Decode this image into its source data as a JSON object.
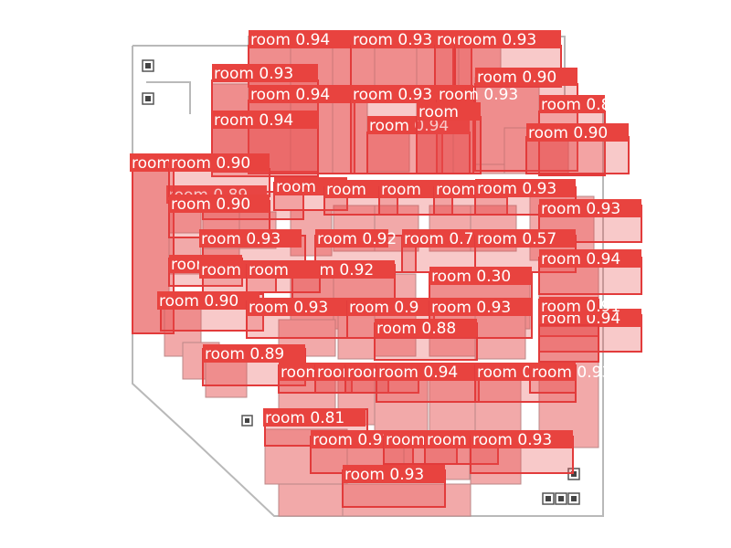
{
  "class_label": "room",
  "colors": {
    "box": "#e23b3b",
    "tag": "#e8433f",
    "fill": "#f2a9a9",
    "outline": "#b9b9b9"
  },
  "icons": [
    "restroom-icon",
    "restroom-icon",
    "restroom-icon",
    "restroom-icon",
    "facility-icons"
  ],
  "detections": [
    {
      "score": "0.94"
    },
    {
      "score": "0.93"
    },
    {
      "score": "0.9"
    },
    {
      "score": "0.93"
    },
    {
      "score": "0.93"
    },
    {
      "score": "0.90"
    },
    {
      "score": "0.94"
    },
    {
      "score": "0.93"
    },
    {
      "score": "0.93"
    },
    {
      "score": "0.89"
    },
    {
      "score": "0.94"
    },
    {
      "score": "0.94"
    },
    {
      "score": ""
    },
    {
      "score": "0.90"
    },
    {
      "score": "0.89"
    },
    {
      "score": "0.90"
    },
    {
      "score": "0.90"
    },
    {
      "score": ""
    },
    {
      "score": ""
    },
    {
      "score": ""
    },
    {
      "score": ""
    },
    {
      "score": "0.93"
    },
    {
      "score": "0.93"
    },
    {
      "score": "0.90"
    },
    {
      "score": "0.93"
    },
    {
      "score": "0.92"
    },
    {
      "score": "0.74"
    },
    {
      "score": "0.57"
    },
    {
      "score": "0.94"
    },
    {
      "score": ""
    },
    {
      "score": ""
    },
    {
      "score": "0.92"
    },
    {
      "score": ""
    },
    {
      "score": "0.30"
    },
    {
      "score": "0.91"
    },
    {
      "score": "0.90"
    },
    {
      "score": "0.93"
    },
    {
      "score": "0.9"
    },
    {
      "score": "0.93"
    },
    {
      "score": "0.94"
    },
    {
      "score": "0.91"
    },
    {
      "score": "0.88"
    },
    {
      "score": "0.89"
    },
    {
      "score": ""
    },
    {
      "score": ""
    },
    {
      "score": ""
    },
    {
      "score": "0.94"
    },
    {
      "score": "0.94"
    },
    {
      "score": "0.93"
    },
    {
      "score": "0.81"
    },
    {
      "score": "0.92"
    },
    {
      "score": ""
    },
    {
      "score": ""
    },
    {
      "score": "0.93"
    },
    {
      "score": "0.93"
    }
  ]
}
